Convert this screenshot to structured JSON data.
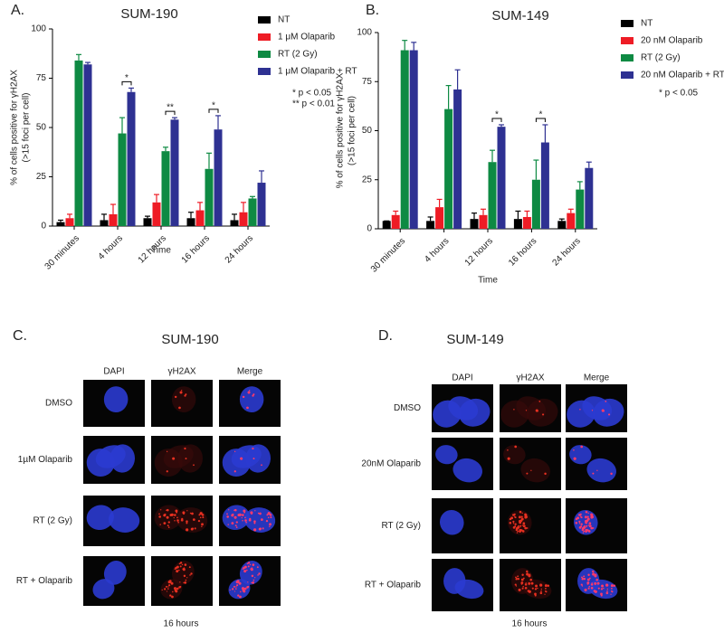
{
  "chart_data": [
    {
      "type": "bar",
      "panel_label": "A.",
      "title": "SUM-190",
      "x_label": "Time",
      "y_label": [
        "% of cells positive for γH2AX",
        "(>15 foci per cell)"
      ],
      "categories": [
        "30 minutes",
        "4 hours",
        "12 hours",
        "16 hours",
        "24 hours"
      ],
      "series": [
        {
          "name": "NT",
          "color": "#000000",
          "values": [
            2,
            3,
            4,
            4,
            3
          ],
          "errors": [
            1,
            3,
            1,
            3,
            3
          ]
        },
        {
          "name": "1 μM Olaparib",
          "color": "#ee1c25",
          "values": [
            4,
            6,
            12,
            8,
            7
          ],
          "errors": [
            2,
            5,
            4,
            4,
            5
          ]
        },
        {
          "name": "RT (2 Gy)",
          "color": "#0e8a43",
          "values": [
            84,
            47,
            38,
            29,
            14
          ],
          "errors": [
            3,
            8,
            2,
            8,
            1
          ]
        },
        {
          "name": "1 μM Olaparib + RT",
          "color": "#2e3192",
          "values": [
            82,
            68,
            54,
            49,
            22
          ],
          "errors": [
            1,
            2,
            1,
            7,
            6
          ]
        }
      ],
      "ylim": [
        0,
        100
      ],
      "yticks": [
        0,
        25,
        50,
        75,
        100
      ],
      "legend": "upper right",
      "significance": [
        {
          "category": "4 hours",
          "label": "*"
        },
        {
          "category": "12 hours",
          "label": "**"
        },
        {
          "category": "16 hours",
          "label": "*"
        }
      ],
      "notes": [
        "* p < 0.05",
        "** p < 0.01"
      ]
    },
    {
      "type": "bar",
      "panel_label": "B.",
      "title": "SUM-149",
      "x_label": "Time",
      "y_label": [
        "% of cells positive for γH2AX",
        "(>15 foci per cell)"
      ],
      "categories": [
        "30 minutes",
        "4 hours",
        "12 hours",
        "16 hours",
        "24 hours"
      ],
      "series": [
        {
          "name": "NT",
          "color": "#000000",
          "values": [
            4,
            4,
            5,
            5,
            4
          ],
          "errors": [
            0,
            2,
            3,
            4,
            1
          ]
        },
        {
          "name": "20 nM Olaparib",
          "color": "#ee1c25",
          "values": [
            7,
            11,
            7,
            6,
            8
          ],
          "errors": [
            2,
            4,
            3,
            3,
            2
          ]
        },
        {
          "name": "RT (2 Gy)",
          "color": "#0e8a43",
          "values": [
            91,
            61,
            34,
            25,
            20
          ],
          "errors": [
            5,
            12,
            6,
            10,
            4
          ]
        },
        {
          "name": "20 nM Olaparib + RT",
          "color": "#2e3192",
          "values": [
            91,
            71,
            52,
            44,
            31
          ],
          "errors": [
            4,
            10,
            1,
            9,
            3
          ]
        }
      ],
      "ylim": [
        0,
        100
      ],
      "yticks": [
        0,
        25,
        50,
        75,
        100
      ],
      "legend": "upper right",
      "significance": [
        {
          "category": "12 hours",
          "label": "*"
        },
        {
          "category": "16 hours",
          "label": "*"
        }
      ],
      "notes": [
        "* p < 0.05"
      ]
    }
  ],
  "image_panels": [
    {
      "label": "C.",
      "title": "SUM-190",
      "columns": [
        "DAPI",
        "γH2AX",
        "Merge"
      ],
      "rows": [
        "DMSO",
        "1µM Olaparib",
        "RT (2 Gy)",
        "RT + Olaparib"
      ],
      "caption": "16 hours"
    },
    {
      "label": "D.",
      "title": "SUM-149",
      "columns": [
        "DAPI",
        "γH2AX",
        "Merge"
      ],
      "rows": [
        "DMSO",
        "20nM Olaparib",
        "RT (2 Gy)",
        "RT + Olaparib"
      ],
      "caption": "16 hours"
    }
  ]
}
